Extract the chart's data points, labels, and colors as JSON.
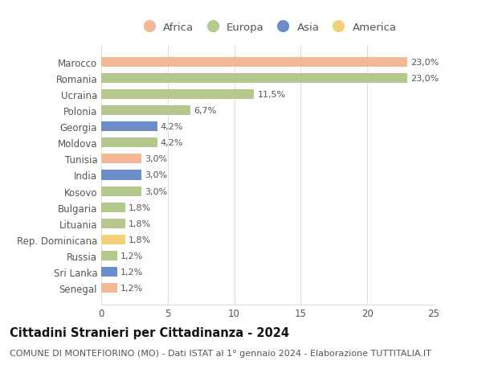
{
  "countries": [
    "Marocco",
    "Romania",
    "Ucraina",
    "Polonia",
    "Georgia",
    "Moldova",
    "Tunisia",
    "India",
    "Kosovo",
    "Bulgaria",
    "Lituania",
    "Rep. Dominicana",
    "Russia",
    "Sri Lanka",
    "Senegal"
  ],
  "values": [
    23.0,
    23.0,
    11.5,
    6.7,
    4.2,
    4.2,
    3.0,
    3.0,
    3.0,
    1.8,
    1.8,
    1.8,
    1.2,
    1.2,
    1.2
  ],
  "labels": [
    "23,0%",
    "23,0%",
    "11,5%",
    "6,7%",
    "4,2%",
    "4,2%",
    "3,0%",
    "3,0%",
    "3,0%",
    "1,8%",
    "1,8%",
    "1,8%",
    "1,2%",
    "1,2%",
    "1,2%"
  ],
  "continents": [
    "Africa",
    "Europa",
    "Europa",
    "Europa",
    "Asia",
    "Europa",
    "Africa",
    "Asia",
    "Europa",
    "Europa",
    "Europa",
    "America",
    "Europa",
    "Asia",
    "Africa"
  ],
  "colors": {
    "Africa": "#F5B895",
    "Europa": "#B5C98E",
    "Asia": "#6A8FC8",
    "America": "#F5D07A"
  },
  "legend_order": [
    "Africa",
    "Europa",
    "Asia",
    "America"
  ],
  "title": "Cittadini Stranieri per Cittadinanza - 2024",
  "subtitle": "COMUNE DI MONTEFIORINO (MO) - Dati ISTAT al 1° gennaio 2024 - Elaborazione TUTTITALIA.IT",
  "xlim": [
    0,
    25
  ],
  "xticks": [
    0,
    5,
    10,
    15,
    20,
    25
  ],
  "bg_color": "#ffffff",
  "grid_color": "#dddddd",
  "bar_height": 0.6,
  "title_fontsize": 10.5,
  "subtitle_fontsize": 8,
  "label_fontsize": 8,
  "tick_fontsize": 8.5,
  "legend_fontsize": 9.5
}
